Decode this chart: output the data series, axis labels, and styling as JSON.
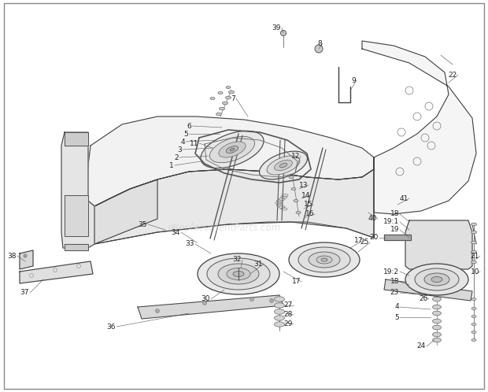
{
  "bg_color": "#ffffff",
  "line_color": "#404040",
  "watermark": "eReplacementParts.com",
  "figsize": [
    6.2,
    4.98
  ],
  "dpi": 100,
  "border_color": "#888888"
}
